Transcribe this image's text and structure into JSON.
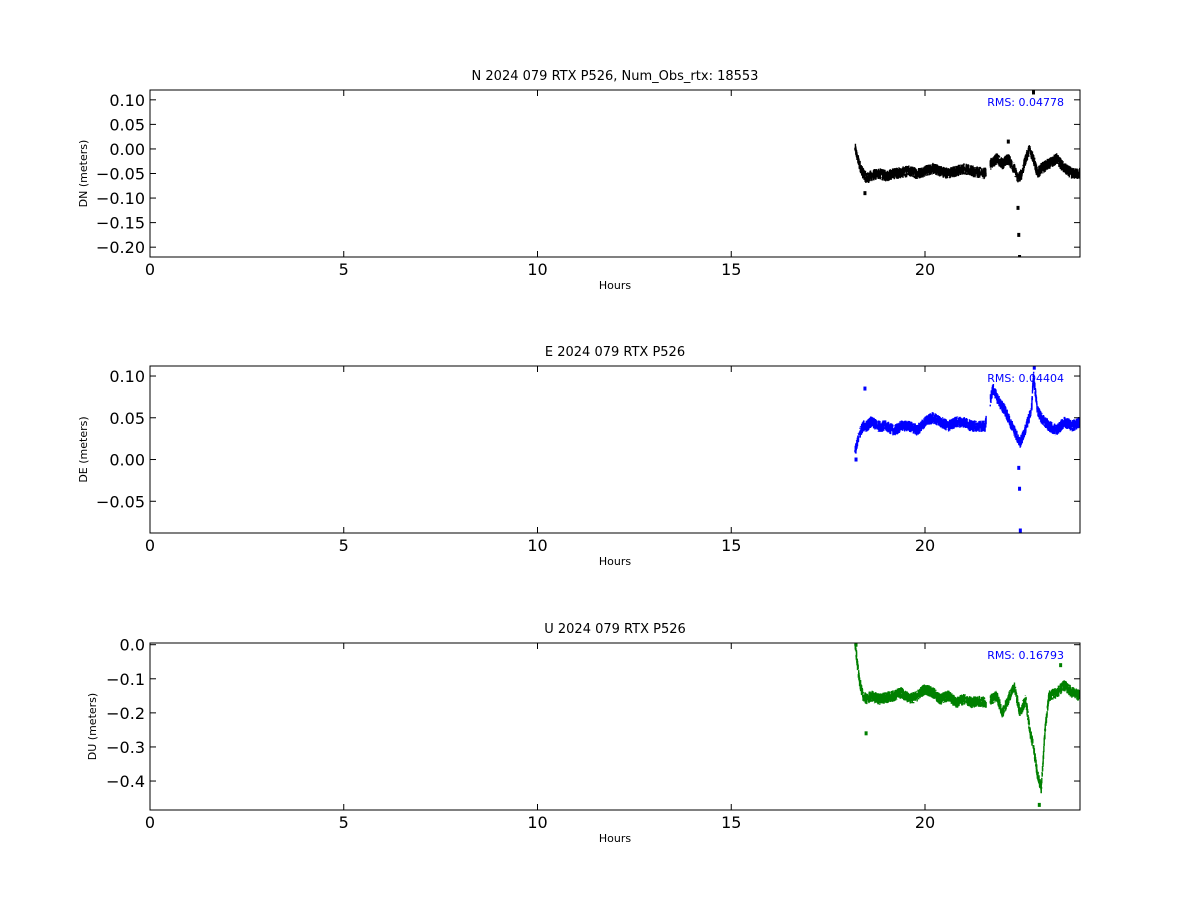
{
  "chart_data": [
    {
      "type": "scatter",
      "title": "N 2024 079 RTX  P526, Num_Obs_rtx: 18553",
      "xlabel": "Hours",
      "ylabel": "DN (meters)",
      "xlim": [
        0,
        24
      ],
      "ylim": [
        -0.22,
        0.12
      ],
      "xticks": [
        0,
        5,
        10,
        15,
        20
      ],
      "yticks": [
        0.1,
        0.05,
        0.0,
        -0.05,
        -0.1,
        -0.15,
        -0.2
      ],
      "ytick_labels": [
        "0.10",
        "0.05",
        "0.00",
        "−0.05",
        "−0.10",
        "−0.15",
        "−0.20"
      ],
      "annotation": "RMS:  0.04778",
      "color": "#000000",
      "series": [
        {
          "x": [
            18.2,
            18.3,
            18.4,
            18.5,
            18.6,
            18.8,
            19.0,
            19.2,
            19.4,
            19.6,
            19.8,
            20.0,
            20.2,
            20.4,
            20.6,
            20.8,
            21.0,
            21.2,
            21.4,
            21.55,
            21.7,
            21.85,
            22.0,
            22.15,
            22.3,
            22.4,
            22.5,
            22.6,
            22.7,
            22.8,
            22.9,
            23.0,
            23.2,
            23.4,
            23.6,
            23.8,
            24.0
          ],
          "y": [
            0.0,
            -0.03,
            -0.05,
            -0.06,
            -0.055,
            -0.05,
            -0.055,
            -0.05,
            -0.048,
            -0.045,
            -0.05,
            -0.045,
            -0.04,
            -0.045,
            -0.05,
            -0.045,
            -0.04,
            -0.045,
            -0.048,
            -0.05,
            -0.03,
            -0.02,
            -0.03,
            -0.02,
            -0.04,
            -0.06,
            -0.05,
            -0.02,
            0.0,
            -0.02,
            -0.05,
            -0.04,
            -0.03,
            -0.02,
            -0.04,
            -0.05,
            -0.05
          ]
        }
      ],
      "outliers": [
        [
          18.45,
          -0.09
        ],
        [
          22.4,
          -0.12
        ],
        [
          22.42,
          -0.175
        ],
        [
          22.44,
          -0.22
        ],
        [
          22.8,
          0.115
        ],
        [
          22.15,
          0.015
        ]
      ]
    },
    {
      "type": "scatter",
      "title": "E 2024 079 RTX  P526",
      "xlabel": "Hours",
      "ylabel": "DE (meters)",
      "xlim": [
        0,
        24
      ],
      "ylim": [
        -0.088,
        0.112
      ],
      "xticks": [
        0,
        5,
        10,
        15,
        20
      ],
      "yticks": [
        0.1,
        0.05,
        0.0,
        -0.05
      ],
      "ytick_labels": [
        "0.10",
        "0.05",
        "0.00",
        "−0.05"
      ],
      "annotation": "RMS:  0.04404",
      "color": "#0000ff",
      "series": [
        {
          "x": [
            18.2,
            18.3,
            18.4,
            18.5,
            18.6,
            18.8,
            19.0,
            19.2,
            19.4,
            19.6,
            19.8,
            20.0,
            20.2,
            20.4,
            20.6,
            20.8,
            21.0,
            21.2,
            21.4,
            21.55,
            21.75,
            21.9,
            22.05,
            22.2,
            22.35,
            22.45,
            22.55,
            22.65,
            22.75,
            22.8,
            22.9,
            23.0,
            23.2,
            23.4,
            23.6,
            23.8,
            24.0
          ],
          "y": [
            0.01,
            0.03,
            0.04,
            0.04,
            0.045,
            0.04,
            0.04,
            0.035,
            0.04,
            0.04,
            0.035,
            0.045,
            0.05,
            0.045,
            0.04,
            0.045,
            0.045,
            0.04,
            0.04,
            0.04,
            0.085,
            0.07,
            0.06,
            0.045,
            0.03,
            0.02,
            0.03,
            0.045,
            0.06,
            0.1,
            0.06,
            0.05,
            0.04,
            0.035,
            0.045,
            0.04,
            0.045
          ]
        }
      ],
      "outliers": [
        [
          18.45,
          0.085
        ],
        [
          22.42,
          -0.01
        ],
        [
          22.44,
          -0.035
        ],
        [
          22.46,
          -0.085
        ],
        [
          22.82,
          0.11
        ],
        [
          18.22,
          0.0
        ]
      ]
    },
    {
      "type": "scatter",
      "title": "U 2024 079 RTX  P526",
      "xlabel": "Hours",
      "ylabel": "DU (meters)",
      "xlim": [
        0,
        24
      ],
      "ylim": [
        -0.485,
        0.005
      ],
      "xticks": [
        0,
        5,
        10,
        15,
        20
      ],
      "yticks": [
        0.0,
        -0.1,
        -0.2,
        -0.3,
        -0.4
      ],
      "ytick_labels": [
        "0.0",
        "−0.1",
        "−0.2",
        "−0.3",
        "−0.4"
      ],
      "annotation": "RMS:  0.16793",
      "color": "#008000",
      "series": [
        {
          "x": [
            18.2,
            18.25,
            18.3,
            18.4,
            18.5,
            18.6,
            18.8,
            19.0,
            19.2,
            19.4,
            19.6,
            19.8,
            20.0,
            20.2,
            20.4,
            20.6,
            20.8,
            21.0,
            21.2,
            21.4,
            21.55,
            21.7,
            21.85,
            22.0,
            22.15,
            22.3,
            22.45,
            22.6,
            22.7,
            22.8,
            22.9,
            23.0,
            23.1,
            23.2,
            23.4,
            23.6,
            23.8,
            24.0
          ],
          "y": [
            0.0,
            -0.05,
            -0.1,
            -0.15,
            -0.16,
            -0.15,
            -0.16,
            -0.155,
            -0.15,
            -0.14,
            -0.16,
            -0.15,
            -0.13,
            -0.14,
            -0.16,
            -0.15,
            -0.17,
            -0.16,
            -0.17,
            -0.165,
            -0.17,
            -0.16,
            -0.15,
            -0.2,
            -0.16,
            -0.12,
            -0.2,
            -0.16,
            -0.25,
            -0.3,
            -0.38,
            -0.42,
            -0.25,
            -0.15,
            -0.14,
            -0.12,
            -0.14,
            -0.15
          ]
        }
      ],
      "outliers": [
        [
          18.48,
          -0.26
        ],
        [
          22.95,
          -0.47
        ],
        [
          23.5,
          -0.06
        ],
        [
          18.22,
          0.0
        ]
      ]
    }
  ]
}
